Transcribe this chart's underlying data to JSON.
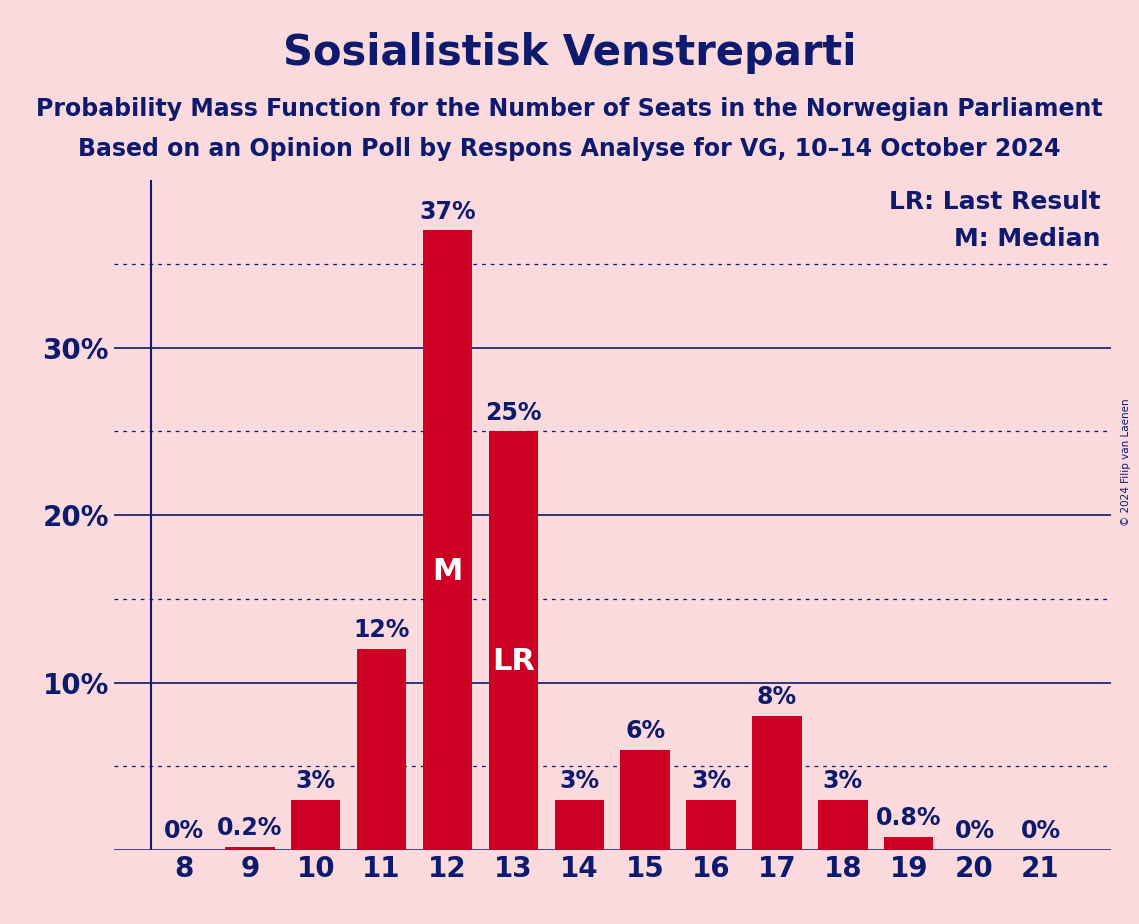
{
  "title": "Sosialistisk Venstreparti",
  "subtitle1": "Probability Mass Function for the Number of Seats in the Norwegian Parliament",
  "subtitle2": "Based on an Opinion Poll by Respons Analyse for VG, 10–14 October 2024",
  "categories": [
    8,
    9,
    10,
    11,
    12,
    13,
    14,
    15,
    16,
    17,
    18,
    19,
    20,
    21
  ],
  "values": [
    0.0,
    0.2,
    3.0,
    12.0,
    37.0,
    25.0,
    3.0,
    6.0,
    3.0,
    8.0,
    3.0,
    0.8,
    0.0,
    0.0
  ],
  "labels": [
    "0%",
    "0.2%",
    "3%",
    "12%",
    "37%",
    "25%",
    "3%",
    "6%",
    "3%",
    "8%",
    "3%",
    "0.8%",
    "0%",
    "0%"
  ],
  "bar_color": "#cc0022",
  "background_color": "#fadadd",
  "text_color": "#0d1a6e",
  "white": "#ffffff",
  "median_bar": 12,
  "lr_bar": 13,
  "solid_yticks": [
    0,
    10,
    20,
    30
  ],
  "dotted_yticks": [
    5,
    15,
    25,
    35
  ],
  "solid_ytick_labels": [
    "",
    "10%",
    "20%",
    "30%"
  ],
  "ylim": [
    0,
    40
  ],
  "title_fontsize": 30,
  "subtitle_fontsize": 17,
  "tick_fontsize": 20,
  "bar_label_fontsize": 17,
  "inside_label_fontsize": 22,
  "legend_fontsize": 18,
  "copyright_text": "© 2024 Filip van Laenen",
  "lr_label": "LR",
  "median_label": "M"
}
